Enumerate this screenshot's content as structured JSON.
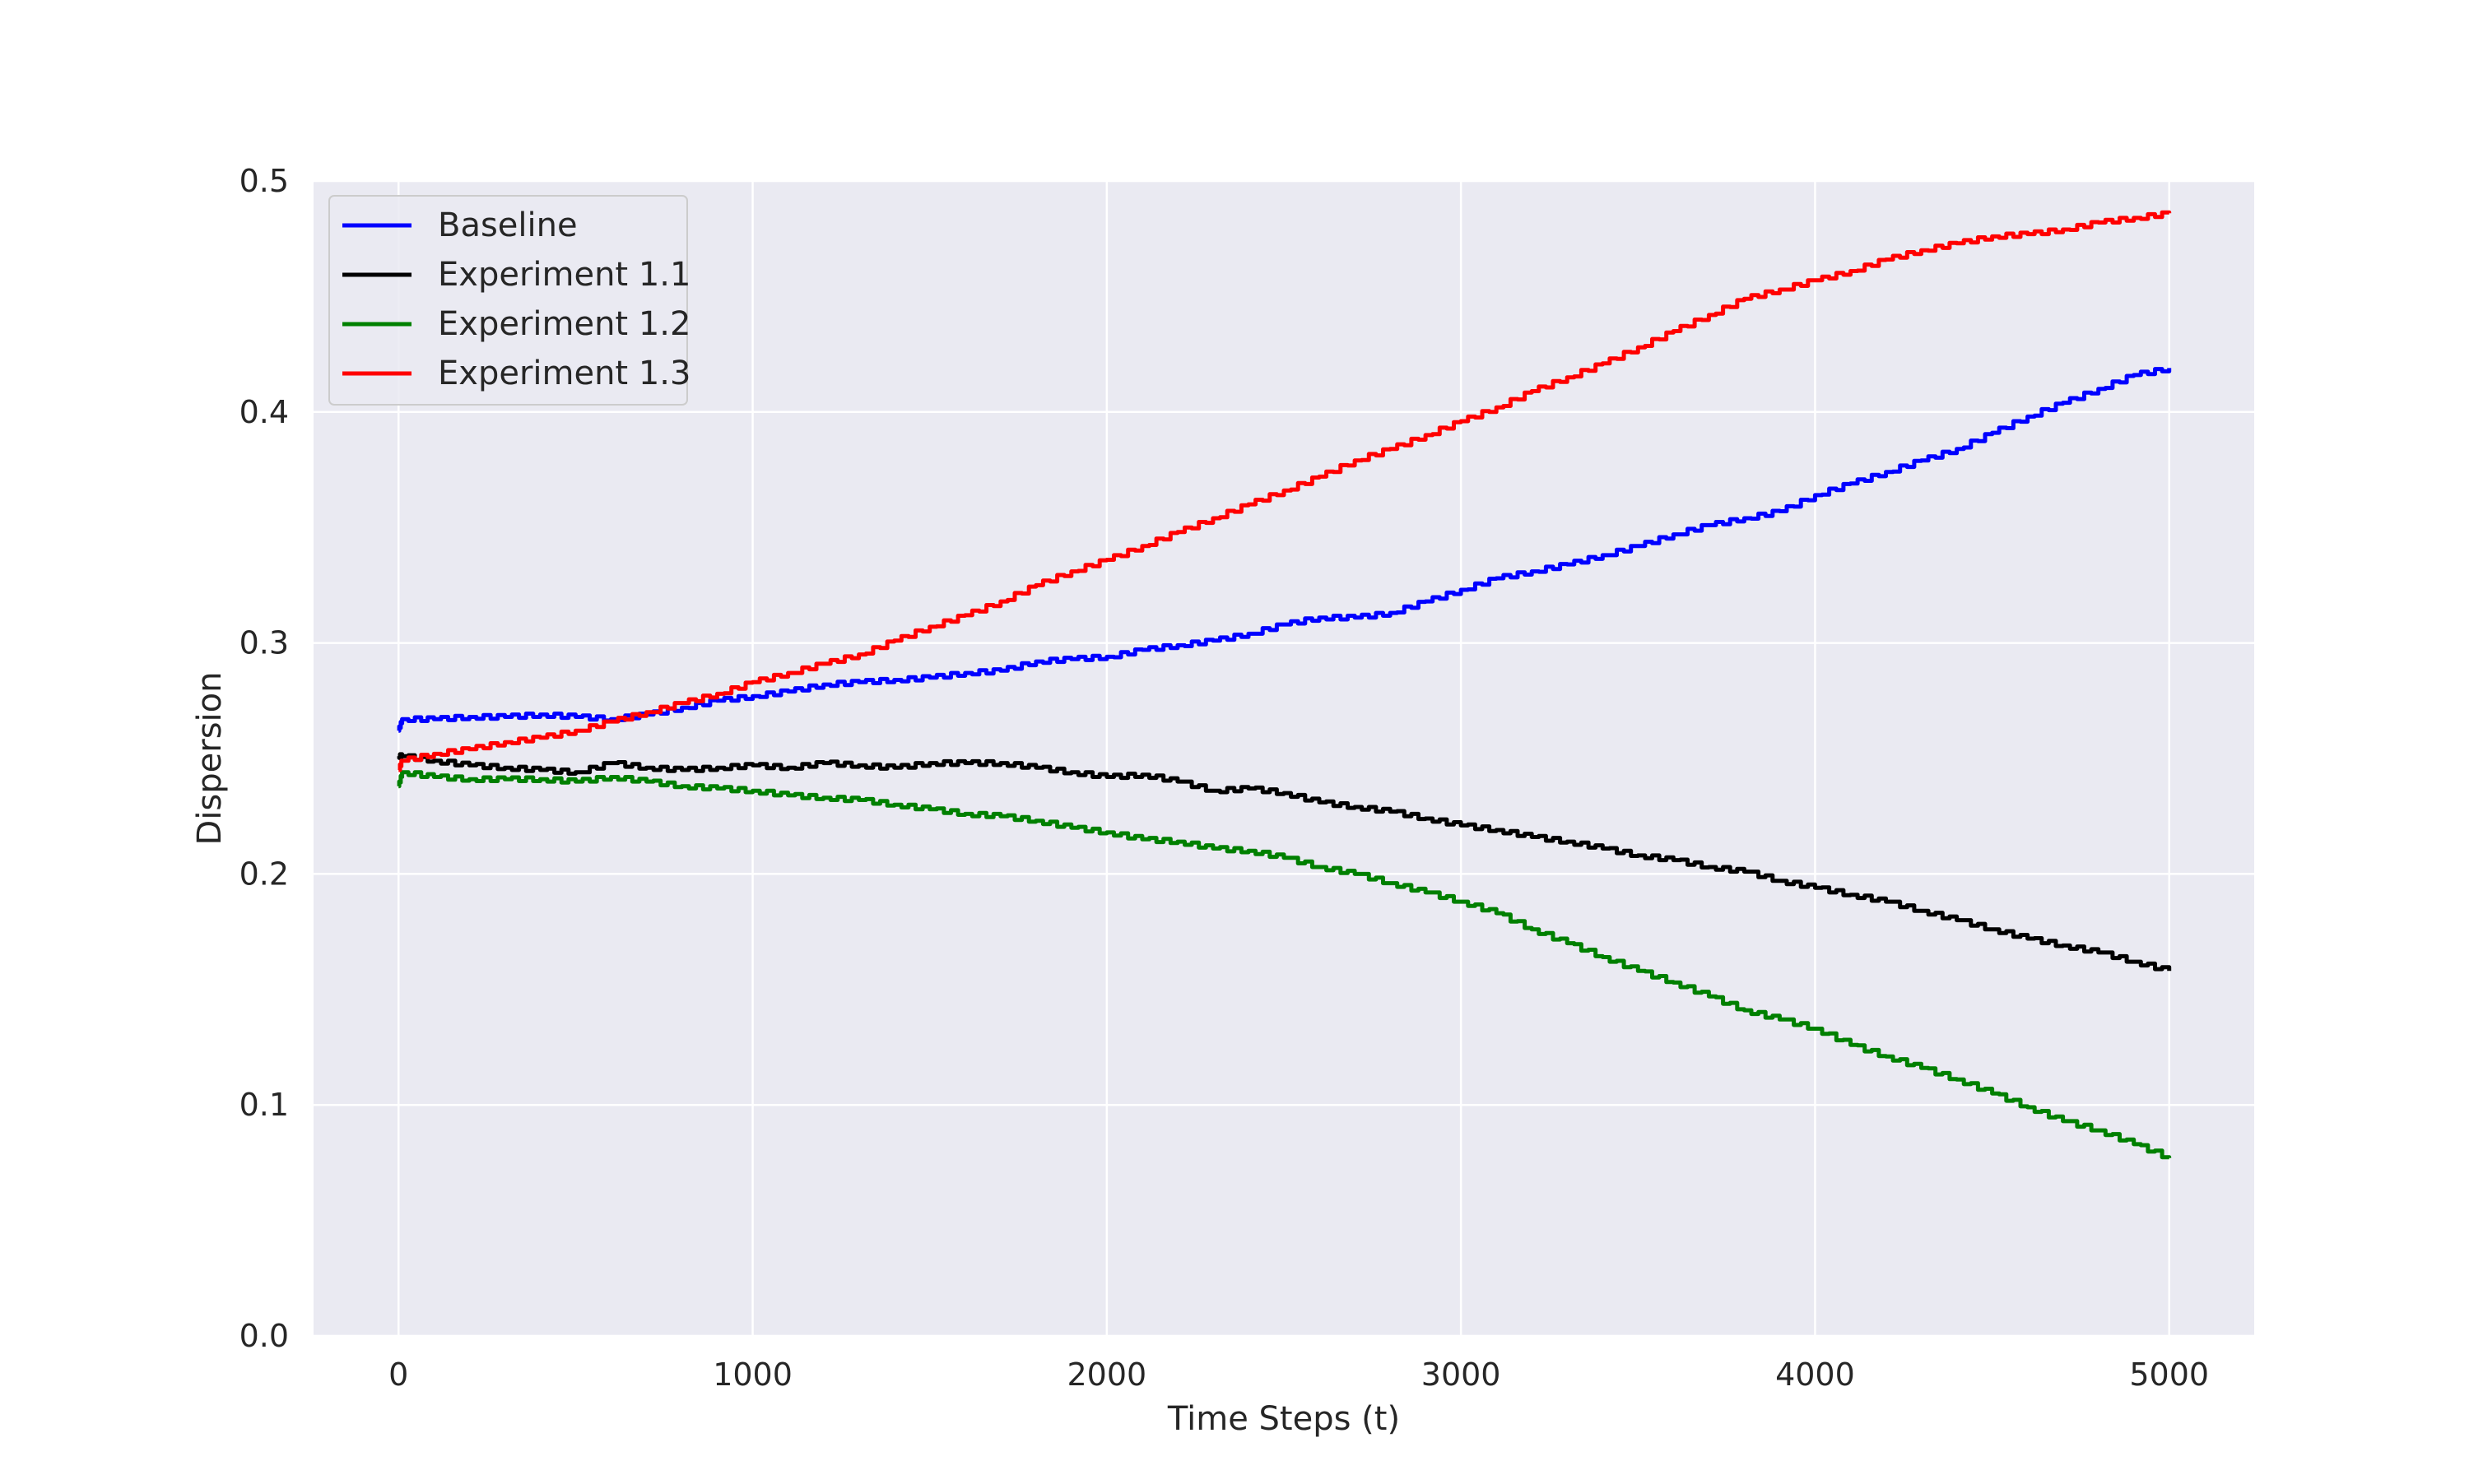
{
  "chart_data": {
    "type": "line",
    "title": "",
    "xlabel": "Time Steps (t)",
    "ylabel": "Dispersion",
    "xlim": [
      -240,
      5240
    ],
    "ylim": [
      0.0,
      0.5
    ],
    "xticks": [
      0,
      1000,
      2000,
      3000,
      4000,
      5000
    ],
    "xtick_labels": [
      "0",
      "1000",
      "2000",
      "3000",
      "4000",
      "5000"
    ],
    "yticks": [
      0.0,
      0.1,
      0.2,
      0.3,
      0.4,
      0.5
    ],
    "ytick_labels": [
      "0.0",
      "0.1",
      "0.2",
      "0.3",
      "0.4",
      "0.5"
    ],
    "grid": true,
    "background": "#eaeaf2",
    "grid_color": "#ffffff",
    "legend_position": "upper-left",
    "x": [
      0,
      10,
      100,
      200,
      300,
      400,
      500,
      600,
      700,
      800,
      900,
      1000,
      1100,
      1200,
      1300,
      1400,
      1500,
      1600,
      1700,
      1800,
      1900,
      2000,
      2100,
      2200,
      2300,
      2400,
      2500,
      2600,
      2700,
      2800,
      2900,
      3000,
      3100,
      3200,
      3300,
      3400,
      3500,
      3600,
      3700,
      3800,
      3900,
      4000,
      4100,
      4200,
      4300,
      4400,
      4500,
      4600,
      4700,
      4800,
      4900,
      5000
    ],
    "series": [
      {
        "name": "Baseline",
        "color": "#0000ff",
        "values": [
          0.262,
          0.267,
          0.267,
          0.268,
          0.268,
          0.269,
          0.268,
          0.267,
          0.269,
          0.272,
          0.275,
          0.277,
          0.279,
          0.282,
          0.283,
          0.284,
          0.285,
          0.287,
          0.288,
          0.292,
          0.293,
          0.294,
          0.297,
          0.299,
          0.301,
          0.304,
          0.308,
          0.311,
          0.311,
          0.313,
          0.318,
          0.323,
          0.328,
          0.331,
          0.334,
          0.338,
          0.342,
          0.347,
          0.351,
          0.354,
          0.357,
          0.364,
          0.369,
          0.374,
          0.379,
          0.384,
          0.391,
          0.398,
          0.404,
          0.41,
          0.416,
          0.419
        ]
      },
      {
        "name": "Experiment 1.1",
        "color": "#000000",
        "values": [
          0.251,
          0.251,
          0.249,
          0.247,
          0.246,
          0.245,
          0.244,
          0.248,
          0.246,
          0.245,
          0.246,
          0.247,
          0.246,
          0.248,
          0.247,
          0.246,
          0.248,
          0.248,
          0.248,
          0.246,
          0.244,
          0.242,
          0.243,
          0.24,
          0.236,
          0.237,
          0.235,
          0.231,
          0.229,
          0.227,
          0.224,
          0.221,
          0.219,
          0.216,
          0.214,
          0.211,
          0.208,
          0.206,
          0.203,
          0.201,
          0.197,
          0.194,
          0.191,
          0.188,
          0.184,
          0.18,
          0.176,
          0.172,
          0.169,
          0.166,
          0.162,
          0.158
        ]
      },
      {
        "name": "Experiment 1.2",
        "color": "#008000",
        "values": [
          0.238,
          0.244,
          0.242,
          0.241,
          0.241,
          0.241,
          0.24,
          0.242,
          0.24,
          0.238,
          0.237,
          0.236,
          0.234,
          0.233,
          0.232,
          0.23,
          0.228,
          0.226,
          0.225,
          0.223,
          0.22,
          0.218,
          0.215,
          0.214,
          0.211,
          0.21,
          0.207,
          0.203,
          0.2,
          0.196,
          0.192,
          0.188,
          0.183,
          0.176,
          0.17,
          0.164,
          0.158,
          0.153,
          0.147,
          0.141,
          0.137,
          0.133,
          0.126,
          0.121,
          0.116,
          0.111,
          0.105,
          0.099,
          0.093,
          0.089,
          0.083,
          0.077
        ]
      },
      {
        "name": "Experiment 1.3",
        "color": "#ff0000",
        "values": [
          0.245,
          0.249,
          0.252,
          0.254,
          0.257,
          0.259,
          0.262,
          0.266,
          0.27,
          0.274,
          0.278,
          0.283,
          0.287,
          0.291,
          0.295,
          0.301,
          0.307,
          0.312,
          0.318,
          0.325,
          0.331,
          0.336,
          0.342,
          0.348,
          0.354,
          0.36,
          0.366,
          0.372,
          0.379,
          0.384,
          0.39,
          0.396,
          0.402,
          0.409,
          0.415,
          0.421,
          0.428,
          0.435,
          0.442,
          0.449,
          0.453,
          0.457,
          0.461,
          0.466,
          0.47,
          0.473,
          0.476,
          0.477,
          0.479,
          0.482,
          0.484,
          0.486
        ]
      }
    ]
  }
}
